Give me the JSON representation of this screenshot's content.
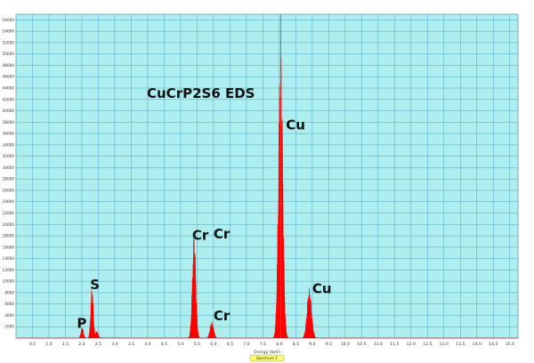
{
  "colors": {
    "plot_background": "#aeeeee",
    "grid": "#4aa6c8",
    "spectrum": "#ff0000",
    "marker": "#c05050",
    "legend_fill": "#ffff66"
  },
  "chart_data": {
    "type": "area",
    "title": "CuCrP2S6  EDS",
    "xlabel": "Energy (keV)",
    "ylabel": "",
    "xlim": [
      0,
      15.25
    ],
    "ylim": [
      0,
      57000
    ],
    "grid": true,
    "legend": [
      "Spectrum 1"
    ],
    "legend_placement": "bottom-center",
    "x_ticks": [
      "0.5",
      "1.0",
      "1.5",
      "2.0",
      "2.5",
      "3.0",
      "3.5",
      "4.0",
      "4.5",
      "5.0",
      "5.5",
      "6.0",
      "6.5",
      "7.0",
      "7.5",
      "8.0",
      "8.5",
      "9.0",
      "9.5",
      "10.0",
      "10.5",
      "11.0",
      "11.5",
      "12.0",
      "12.5",
      "13.0",
      "13.5",
      "14.0",
      "14.5",
      "15.0"
    ],
    "y_ticks": [
      "2000",
      "4000",
      "6000",
      "8000",
      "10000",
      "12000",
      "14000",
      "16000",
      "18000",
      "20000",
      "22000",
      "24000",
      "26000",
      "28000",
      "30000",
      "32000",
      "34000",
      "36000",
      "38000",
      "40000",
      "42000",
      "44000",
      "46000",
      "48000",
      "50000",
      "52000",
      "54000",
      "56000"
    ],
    "marker_x": 8.04,
    "series": [
      {
        "name": "Spectrum 1",
        "peaks": [
          {
            "element": "P",
            "energy": 2.01,
            "counts": 2000
          },
          {
            "element": "S",
            "energy": 2.31,
            "counts": 9500
          },
          {
            "element": "S",
            "energy": 2.46,
            "counts": 1200
          },
          {
            "element": "Cr",
            "energy": 5.41,
            "counts": 19000
          },
          {
            "element": "Cr",
            "energy": 5.95,
            "counts": 3000
          },
          {
            "element": "Cu",
            "energy": 8.04,
            "counts": 55000
          },
          {
            "element": "Cu",
            "energy": 8.91,
            "counts": 9000
          }
        ]
      }
    ],
    "annotations": [
      {
        "text": "P",
        "x": 1.85,
        "y": 1800
      },
      {
        "text": "S",
        "x": 2.25,
        "y": 8600
      },
      {
        "text": "Cr",
        "x": 5.35,
        "y": 17300
      },
      {
        "text": "Cr",
        "x": 6.0,
        "y": 17500
      },
      {
        "text": "Cr",
        "x": 6.0,
        "y": 3100
      },
      {
        "text": "Cu",
        "x": 8.2,
        "y": 36700
      },
      {
        "text": "Cu",
        "x": 9.0,
        "y": 7900
      }
    ]
  }
}
